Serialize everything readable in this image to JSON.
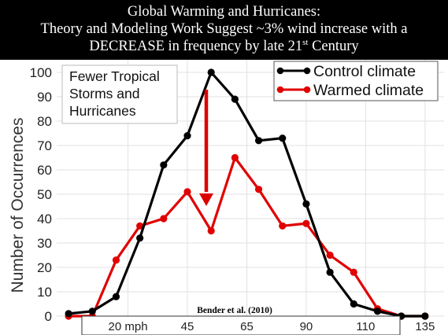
{
  "title": {
    "line1": "Global Warming  and Hurricanes:",
    "line2": "Theory and Modeling Work Suggest ~3% wind increase with a",
    "line3_main": "DECREASE in frequency by late 21",
    "line3_sup": "st",
    "line3_end": " Century"
  },
  "annotation": {
    "lines": [
      "Fewer Tropical",
      "Storms and",
      "Hurricanes"
    ]
  },
  "citation": "Bender et al. (2010)",
  "chart_data": {
    "type": "line",
    "ylabel": "Number of Occurrences",
    "xlabel": "",
    "ylim": [
      0,
      100
    ],
    "yticks": [
      0,
      10,
      20,
      30,
      40,
      50,
      60,
      70,
      80,
      90,
      100
    ],
    "xlim": [
      1,
      16
    ],
    "xtick_labels": [
      {
        "x": 3.5,
        "label": "20 mph"
      },
      {
        "x": 6,
        "label": "45"
      },
      {
        "x": 8.5,
        "label": "65"
      },
      {
        "x": 11,
        "label": "90"
      },
      {
        "x": 13.5,
        "label": "110"
      },
      {
        "x": 16,
        "label": "135"
      }
    ],
    "grid": true,
    "legend_position": "top-right",
    "series": [
      {
        "name": "Control climate",
        "color": "#000000",
        "x": [
          1,
          2,
          3,
          4,
          5,
          6,
          7,
          8,
          9,
          10,
          11,
          12,
          13,
          14,
          15,
          16
        ],
        "values": [
          1,
          2,
          8,
          32,
          62,
          74,
          100,
          89,
          72,
          73,
          46,
          18,
          5,
          2,
          0,
          0
        ]
      },
      {
        "name": "Warmed climate",
        "color": "#e00000",
        "x": [
          1,
          2,
          3,
          4,
          5,
          6,
          7,
          8,
          9,
          10,
          11,
          12,
          13,
          14,
          15,
          16
        ],
        "values": [
          0,
          0,
          23,
          37,
          40,
          51,
          35,
          65,
          52,
          37,
          38,
          25,
          18,
          3,
          0,
          0
        ]
      }
    ],
    "arrow_color": "#dd0000"
  }
}
